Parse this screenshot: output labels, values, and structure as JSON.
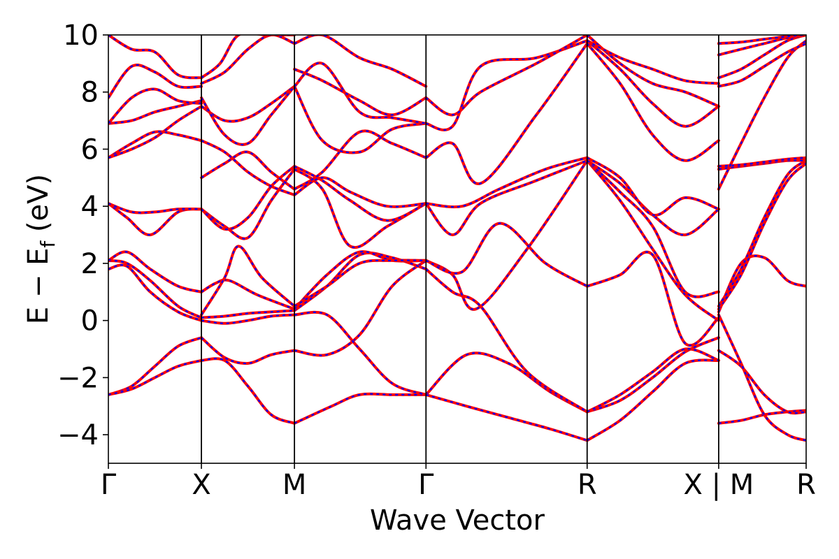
{
  "chart_data": {
    "type": "line",
    "title": "",
    "xlabel": "Wave Vector",
    "ylabel": "E − E",
    "ylabel_subscript": "f",
    "ylabel_unit": "(eV)",
    "ylim": [
      -5,
      10
    ],
    "yticks": [
      -4,
      -2,
      0,
      2,
      4,
      6,
      8,
      10
    ],
    "ytick_labels": [
      "−4",
      "−2",
      "0",
      "2",
      "4",
      "6",
      "8",
      "10"
    ],
    "xlim": [
      0,
      7.5
    ],
    "kpoints": [
      {
        "label": "Γ",
        "x": 0
      },
      {
        "label": "X",
        "x": 1
      },
      {
        "label": "M",
        "x": 2
      },
      {
        "label": "Γ",
        "x": 3.414
      },
      {
        "label": "R",
        "x": 5.146
      },
      {
        "label": "X | M",
        "x": 6.56
      },
      {
        "label": "R",
        "x": 7.5
      }
    ],
    "grid": false,
    "legend": "none",
    "colors": {
      "band_primary": "#ff0000",
      "band_overlay": "#0000ff",
      "axis": "#000000"
    },
    "series": [
      {
        "segment": "Gamma-X",
        "x": [
          0,
          0.25,
          0.5,
          0.75,
          1
        ],
        "y": [
          -2.6,
          -2.3,
          -1.6,
          -0.9,
          -0.6
        ]
      },
      {
        "segment": "Gamma-X",
        "x": [
          0,
          0.25,
          0.5,
          0.75,
          1
        ],
        "y": [
          -2.6,
          -2.4,
          -2.0,
          -1.6,
          -1.4
        ]
      },
      {
        "segment": "Gamma-X",
        "x": [
          0,
          0.2,
          0.45,
          0.75,
          1
        ],
        "y": [
          1.8,
          1.9,
          1.0,
          0.3,
          0.0
        ]
      },
      {
        "segment": "Gamma-X",
        "x": [
          0,
          0.2,
          0.45,
          0.75,
          1
        ],
        "y": [
          2.1,
          2.0,
          1.4,
          0.5,
          0.1
        ]
      },
      {
        "segment": "Gamma-X",
        "x": [
          0,
          0.2,
          0.45,
          0.75,
          1
        ],
        "y": [
          2.1,
          2.4,
          1.8,
          1.2,
          1.0
        ]
      },
      {
        "segment": "Gamma-X",
        "x": [
          0,
          0.2,
          0.45,
          0.75,
          1
        ],
        "y": [
          4.1,
          3.6,
          3.0,
          3.8,
          3.9
        ]
      },
      {
        "segment": "Gamma-X",
        "x": [
          0,
          0.25,
          0.5,
          0.75,
          1
        ],
        "y": [
          4.1,
          3.8,
          3.8,
          3.9,
          3.9
        ]
      },
      {
        "segment": "Gamma-X",
        "x": [
          0,
          0.25,
          0.5,
          0.75,
          1
        ],
        "y": [
          5.7,
          6.2,
          6.6,
          6.5,
          6.3
        ]
      },
      {
        "segment": "Gamma-X",
        "x": [
          0,
          0.25,
          0.5,
          0.75,
          1
        ],
        "y": [
          5.7,
          6.0,
          6.4,
          7.0,
          7.5
        ]
      },
      {
        "segment": "Gamma-X",
        "x": [
          0,
          0.25,
          0.5,
          0.75,
          1
        ],
        "y": [
          6.9,
          7.0,
          7.3,
          7.5,
          7.7
        ]
      },
      {
        "segment": "Gamma-X",
        "x": [
          0,
          0.25,
          0.5,
          0.75,
          1
        ],
        "y": [
          6.9,
          7.8,
          8.1,
          7.7,
          7.6
        ]
      },
      {
        "segment": "Gamma-X",
        "x": [
          0,
          0.25,
          0.5,
          0.75,
          1
        ],
        "y": [
          7.8,
          8.9,
          8.7,
          8.2,
          8.2
        ]
      },
      {
        "segment": "Gamma-X",
        "x": [
          0,
          0.25,
          0.5,
          0.75,
          1
        ],
        "y": [
          10.0,
          9.5,
          9.4,
          8.6,
          8.5
        ]
      },
      {
        "segment": "X-M",
        "x": [
          1,
          1.25,
          1.5,
          1.75,
          2
        ],
        "y": [
          -0.6,
          -1.3,
          -1.5,
          -1.2,
          -1.05
        ]
      },
      {
        "segment": "X-M",
        "x": [
          1,
          1.25,
          1.5,
          1.75,
          2
        ],
        "y": [
          -1.4,
          -1.4,
          -2.3,
          -3.3,
          -3.6
        ]
      },
      {
        "segment": "X-M",
        "x": [
          1,
          1.25,
          1.5,
          1.75,
          2
        ],
        "y": [
          0.0,
          -0.1,
          0.0,
          0.15,
          0.2
        ]
      },
      {
        "segment": "X-M",
        "x": [
          1,
          1.25,
          1.5,
          1.75,
          2
        ],
        "y": [
          0.1,
          0.15,
          0.25,
          0.3,
          0.35
        ]
      },
      {
        "segment": "X-M",
        "x": [
          1,
          1.15,
          1.3,
          1.6,
          2
        ],
        "y": [
          1.0,
          1.3,
          1.4,
          0.9,
          0.4
        ]
      },
      {
        "segment": "X-M",
        "x": [
          1,
          1.25,
          1.4,
          1.65,
          2
        ],
        "y": [
          0.2,
          1.5,
          2.6,
          1.5,
          0.5
        ]
      },
      {
        "segment": "X-M",
        "x": [
          1,
          1.25,
          1.5,
          1.75,
          2
        ],
        "y": [
          3.9,
          3.3,
          2.9,
          4.2,
          5.3
        ]
      },
      {
        "segment": "X-M",
        "x": [
          1,
          1.25,
          1.5,
          1.75,
          2
        ],
        "y": [
          3.9,
          3.2,
          3.6,
          4.7,
          5.4
        ]
      },
      {
        "segment": "X-M",
        "x": [
          1,
          1.25,
          1.5,
          1.75,
          2
        ],
        "y": [
          5.0,
          5.5,
          5.9,
          5.2,
          4.6
        ]
      },
      {
        "segment": "X-M",
        "x": [
          1,
          1.25,
          1.5,
          1.75,
          2
        ],
        "y": [
          6.3,
          5.9,
          5.2,
          4.7,
          4.4
        ]
      },
      {
        "segment": "X-M",
        "x": [
          1,
          1.25,
          1.5,
          1.75,
          2
        ],
        "y": [
          7.5,
          7.0,
          7.1,
          7.6,
          8.2
        ]
      },
      {
        "segment": "X-M",
        "x": [
          1,
          1.25,
          1.5,
          1.75,
          2
        ],
        "y": [
          7.8,
          6.5,
          6.2,
          7.2,
          8.2
        ]
      },
      {
        "segment": "X-M",
        "x": [
          1,
          1.25,
          1.5,
          1.75,
          2
        ],
        "y": [
          8.3,
          8.7,
          9.5,
          10.0,
          9.7
        ]
      },
      {
        "segment": "X-M",
        "x": [
          1,
          1.2,
          1.4,
          1.7,
          2
        ],
        "y": [
          8.5,
          9.0,
          10.0,
          10.0,
          10.0
        ]
      },
      {
        "segment": "M-Gamma",
        "x": [
          2,
          2.4,
          2.7,
          3.05,
          3.414
        ],
        "y": [
          -3.6,
          -3.0,
          -2.6,
          -2.6,
          -2.6
        ]
      },
      {
        "segment": "M-Gamma",
        "x": [
          2,
          2.35,
          2.7,
          3.05,
          3.414
        ],
        "y": [
          -1.05,
          -1.2,
          -0.5,
          1.2,
          2.1
        ]
      },
      {
        "segment": "M-Gamma",
        "x": [
          2,
          2.35,
          2.7,
          3.05,
          3.414
        ],
        "y": [
          0.2,
          0.2,
          -1.0,
          -2.2,
          -2.6
        ]
      },
      {
        "segment": "M-Gamma",
        "x": [
          2,
          2.35,
          2.7,
          3.05,
          3.414
        ],
        "y": [
          0.35,
          1.2,
          2.3,
          2.2,
          1.8
        ]
      },
      {
        "segment": "M-Gamma",
        "x": [
          2,
          2.35,
          2.7,
          3.05,
          3.414
        ],
        "y": [
          0.4,
          1.6,
          2.4,
          2.1,
          2.1
        ]
      },
      {
        "segment": "M-Gamma",
        "x": [
          2,
          2.35,
          2.7,
          3.05,
          3.414
        ],
        "y": [
          0.5,
          1.2,
          2.0,
          2.1,
          2.1
        ]
      },
      {
        "segment": "M-Gamma",
        "x": [
          2,
          2.3,
          2.6,
          3.0,
          3.414
        ],
        "y": [
          5.3,
          4.6,
          2.6,
          3.3,
          4.1
        ]
      },
      {
        "segment": "M-Gamma",
        "x": [
          2,
          2.3,
          2.6,
          3.0,
          3.414
        ],
        "y": [
          5.4,
          4.9,
          4.2,
          3.5,
          4.1
        ]
      },
      {
        "segment": "M-Gamma",
        "x": [
          2,
          2.3,
          2.6,
          3.0,
          3.414
        ],
        "y": [
          4.4,
          5.0,
          4.5,
          4.0,
          4.1
        ]
      },
      {
        "segment": "M-Gamma",
        "x": [
          2,
          2.3,
          2.7,
          3.05,
          3.414
        ],
        "y": [
          4.6,
          5.2,
          6.6,
          6.2,
          5.7
        ]
      },
      {
        "segment": "M-Gamma",
        "x": [
          2,
          2.3,
          2.7,
          3.05,
          3.414
        ],
        "y": [
          8.2,
          6.3,
          5.9,
          6.7,
          6.9
        ]
      },
      {
        "segment": "M-Gamma",
        "x": [
          2,
          2.3,
          2.7,
          3.05,
          3.414
        ],
        "y": [
          8.2,
          9.0,
          7.3,
          7.1,
          6.9
        ]
      },
      {
        "segment": "M-Gamma",
        "x": [
          2,
          2.3,
          2.7,
          3.05,
          3.414
        ],
        "y": [
          8.8,
          8.4,
          7.7,
          7.2,
          7.8
        ]
      },
      {
        "segment": "M-Gamma",
        "x": [
          2,
          2.3,
          2.7,
          3.05,
          3.414
        ],
        "y": [
          9.7,
          10.0,
          9.2,
          8.8,
          8.2
        ]
      },
      {
        "segment": "Gamma-R",
        "x": [
          3.414,
          3.85,
          4.3,
          4.75,
          5.146
        ],
        "y": [
          -2.6,
          -1.2,
          -1.5,
          -2.5,
          -3.2
        ]
      },
      {
        "segment": "Gamma-R",
        "x": [
          3.414,
          3.85,
          4.3,
          4.75,
          5.146
        ],
        "y": [
          -2.6,
          -3.0,
          -3.4,
          -3.8,
          -4.2
        ]
      },
      {
        "segment": "Gamma-R",
        "x": [
          3.414,
          3.7,
          4.0,
          4.5,
          5.146
        ],
        "y": [
          1.8,
          1.0,
          0.5,
          -1.8,
          -3.2
        ]
      },
      {
        "segment": "Gamma-R",
        "x": [
          3.414,
          3.7,
          3.95,
          4.5,
          5.146
        ],
        "y": [
          2.1,
          1.6,
          0.4,
          2.5,
          5.6
        ]
      },
      {
        "segment": "Gamma-R",
        "x": [
          3.414,
          3.8,
          4.2,
          4.7,
          5.146
        ],
        "y": [
          2.1,
          1.7,
          3.4,
          2.0,
          1.2
        ]
      },
      {
        "segment": "Gamma-R",
        "x": [
          3.414,
          3.7,
          4.0,
          4.6,
          5.146
        ],
        "y": [
          4.1,
          3.0,
          4.1,
          4.9,
          5.6
        ]
      },
      {
        "segment": "Gamma-R",
        "x": [
          3.414,
          3.8,
          4.2,
          4.7,
          5.146
        ],
        "y": [
          4.1,
          4.0,
          4.6,
          5.3,
          5.7
        ]
      },
      {
        "segment": "Gamma-R",
        "x": [
          3.414,
          3.7,
          4.0,
          4.6,
          5.146
        ],
        "y": [
          5.7,
          6.2,
          4.8,
          7.2,
          9.7
        ]
      },
      {
        "segment": "Gamma-R",
        "x": [
          3.414,
          3.7,
          4.0,
          4.6,
          5.146
        ],
        "y": [
          6.9,
          6.8,
          8.9,
          9.2,
          9.8
        ]
      },
      {
        "segment": "Gamma-R",
        "x": [
          3.414,
          3.7,
          4.0,
          4.6,
          5.146
        ],
        "y": [
          7.8,
          7.2,
          8.0,
          9.0,
          10.0
        ]
      },
      {
        "segment": "R-X",
        "x": [
          5.146,
          5.5,
          5.85,
          6.2,
          6.56
        ],
        "y": [
          -4.2,
          -3.5,
          -2.5,
          -1.5,
          -1.4
        ]
      },
      {
        "segment": "R-X",
        "x": [
          5.146,
          5.5,
          5.85,
          6.2,
          6.56
        ],
        "y": [
          -3.2,
          -2.8,
          -2.0,
          -1.1,
          -0.6
        ]
      },
      {
        "segment": "R-X",
        "x": [
          5.146,
          5.5,
          5.85,
          6.2,
          6.56
        ],
        "y": [
          -3.2,
          -2.6,
          -1.8,
          -1.0,
          -1.4
        ]
      },
      {
        "segment": "R-X",
        "x": [
          5.146,
          5.5,
          5.85,
          6.2,
          6.56
        ],
        "y": [
          1.2,
          1.6,
          2.3,
          -0.8,
          0.1
        ]
      },
      {
        "segment": "R-X",
        "x": [
          5.146,
          5.5,
          5.85,
          6.2,
          6.56
        ],
        "y": [
          5.6,
          4.2,
          2.5,
          0.9,
          0.0
        ]
      },
      {
        "segment": "R-X",
        "x": [
          5.146,
          5.5,
          5.85,
          6.2,
          6.56
        ],
        "y": [
          5.6,
          4.5,
          3.3,
          1.0,
          1.0
        ]
      },
      {
        "segment": "R-X",
        "x": [
          5.146,
          5.5,
          5.85,
          6.2,
          6.56
        ],
        "y": [
          5.6,
          4.8,
          3.7,
          3.0,
          3.9
        ]
      },
      {
        "segment": "R-X",
        "x": [
          5.146,
          5.5,
          5.85,
          6.2,
          6.56
        ],
        "y": [
          5.7,
          5.0,
          3.7,
          4.3,
          3.9
        ]
      },
      {
        "segment": "R-X",
        "x": [
          5.146,
          5.5,
          5.85,
          6.2,
          6.56
        ],
        "y": [
          9.7,
          8.3,
          6.5,
          5.6,
          6.3
        ]
      },
      {
        "segment": "R-X",
        "x": [
          5.146,
          5.5,
          5.85,
          6.2,
          6.56
        ],
        "y": [
          9.8,
          8.8,
          7.6,
          6.8,
          7.5
        ]
      },
      {
        "segment": "R-X",
        "x": [
          5.146,
          5.5,
          5.85,
          6.2,
          6.56
        ],
        "y": [
          10.0,
          9.0,
          8.3,
          8.0,
          7.5
        ]
      },
      {
        "segment": "R-X",
        "x": [
          5.146,
          5.5,
          5.85,
          6.2,
          6.56
        ],
        "y": [
          9.8,
          9.2,
          8.8,
          8.4,
          8.3
        ]
      },
      {
        "segment": "M-R",
        "x": [
          6.56,
          6.8,
          7.05,
          7.3,
          7.5
        ],
        "y": [
          -3.6,
          -3.5,
          -3.3,
          -3.2,
          -3.15
        ]
      },
      {
        "segment": "M-R",
        "x": [
          6.56,
          6.8,
          7.05,
          7.3,
          7.5
        ],
        "y": [
          -1.05,
          -1.6,
          -2.6,
          -3.2,
          -3.2
        ]
      },
      {
        "segment": "M-R",
        "x": [
          6.56,
          6.8,
          7.05,
          7.3,
          7.5
        ],
        "y": [
          0.2,
          -1.5,
          -3.3,
          -4.0,
          -4.2
        ]
      },
      {
        "segment": "M-R",
        "x": [
          6.56,
          6.8,
          7.05,
          7.3,
          7.5
        ],
        "y": [
          0.3,
          2.0,
          2.2,
          1.4,
          1.2
        ]
      },
      {
        "segment": "M-R",
        "x": [
          6.56,
          6.8,
          7.05,
          7.3,
          7.5
        ],
        "y": [
          0.4,
          1.6,
          3.4,
          4.9,
          5.5
        ]
      },
      {
        "segment": "M-R",
        "x": [
          6.56,
          6.8,
          7.05,
          7.3,
          7.5
        ],
        "y": [
          0.5,
          1.8,
          3.6,
          5.1,
          5.6
        ]
      },
      {
        "segment": "M-R",
        "x": [
          6.56,
          6.8,
          7.05,
          7.3,
          7.5
        ],
        "y": [
          5.3,
          5.4,
          5.5,
          5.6,
          5.6
        ]
      },
      {
        "segment": "M-R",
        "x": [
          6.56,
          6.8,
          7.05,
          7.3,
          7.5
        ],
        "y": [
          5.4,
          5.45,
          5.55,
          5.65,
          5.7
        ]
      },
      {
        "segment": "M-R",
        "x": [
          6.56,
          6.8,
          7.05,
          7.3,
          7.5
        ],
        "y": [
          4.6,
          6.2,
          7.8,
          9.2,
          9.8
        ]
      },
      {
        "segment": "M-R",
        "x": [
          6.56,
          6.8,
          7.05,
          7.3,
          7.5
        ],
        "y": [
          8.2,
          8.4,
          8.9,
          9.4,
          9.7
        ]
      },
      {
        "segment": "M-R",
        "x": [
          6.56,
          6.8,
          7.05,
          7.3,
          7.5
        ],
        "y": [
          8.5,
          8.8,
          9.3,
          9.8,
          10.0
        ]
      },
      {
        "segment": "M-R",
        "x": [
          6.56,
          6.8,
          7.05,
          7.3,
          7.5
        ],
        "y": [
          9.3,
          9.5,
          9.7,
          9.9,
          10.0
        ]
      },
      {
        "segment": "M-R",
        "x": [
          6.56,
          6.8,
          7.05,
          7.3,
          7.5
        ],
        "y": [
          9.7,
          9.75,
          9.85,
          9.95,
          10.0
        ]
      }
    ]
  }
}
